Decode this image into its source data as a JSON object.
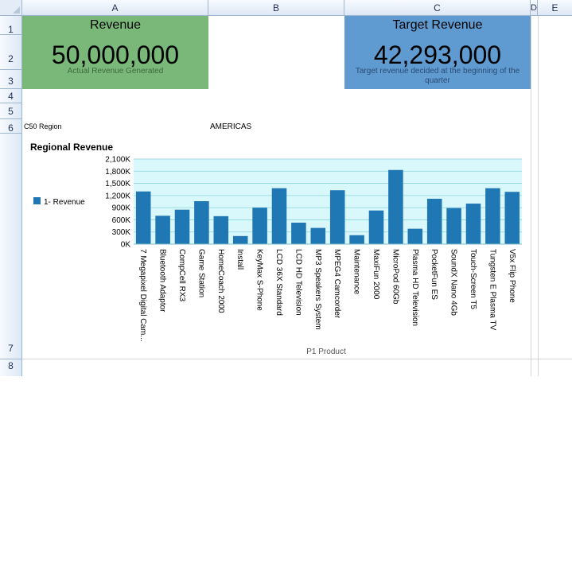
{
  "columns": [
    "A",
    "B",
    "C",
    "D",
    "E"
  ],
  "rows": [
    "1",
    "2",
    "3",
    "4",
    "5",
    "6",
    "7",
    "8"
  ],
  "kpi_revenue": {
    "title": "Revenue",
    "value": "50,000,000",
    "subtitle": "Actual Revenue Generated",
    "color": "#7ab87a"
  },
  "kpi_target": {
    "title": "Target Revenue",
    "value": "42,293,000",
    "subtitle": "Target revenue decided at the beginning of the quarter",
    "color": "#5f9bd1"
  },
  "region_label": "C50 Region",
  "region_value": "AMERICAS",
  "chart_data": {
    "type": "bar",
    "title": "Regional Revenue",
    "xlabel": "P1  Product",
    "ylabel": "",
    "legend": "1- Revenue",
    "legend_position": "left",
    "bar_color": "#1f77b4",
    "plot_background": "#d9f8fb",
    "ylim": [
      0,
      2100
    ],
    "yticks": [
      0,
      300,
      600,
      900,
      1200,
      1500,
      1800,
      2100
    ],
    "ytick_labels": [
      "0K",
      "300K",
      "600K",
      "900K",
      "1,200K",
      "1,500K",
      "1,800K",
      "2,100K"
    ],
    "categories": [
      "7 Megapixel Digital Cam...",
      "Bluetooth Adaptor",
      "CompCell RX3",
      "Game Station",
      "HomeCoach 2000",
      "Install",
      "KeyMax S-Phone",
      "LCD 36X Standard",
      "LCD HD Television",
      "MP3 Speakers System",
      "MPEG4 Camcorder",
      "Maintenance",
      "MaxiFun 2000",
      "MicroPod 60Gb",
      "Plasma HD Television",
      "PocketFun ES",
      "SoundX Nano 4Gb",
      "Touch-Screen T5",
      "Tungsten E Plasma TV",
      "V5x Flip Phone"
    ],
    "values": [
      1300,
      700,
      850,
      1060,
      690,
      200,
      900,
      1380,
      530,
      400,
      1330,
      220,
      830,
      1830,
      380,
      1120,
      890,
      1000,
      1380,
      1290
    ]
  }
}
